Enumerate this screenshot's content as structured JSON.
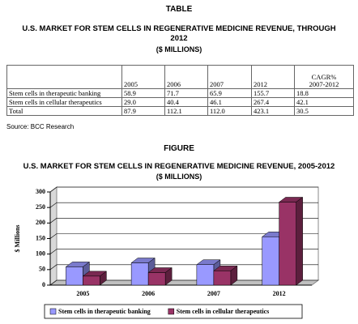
{
  "table_label": "TABLE",
  "table_title": "U.S. MARKET FOR STEM CELLS IN REGENERATIVE MEDICINE REVENUE, THROUGH 2012",
  "table_subtitle": "($ MILLIONS)",
  "table": {
    "header": [
      "2005",
      "2006",
      "2007",
      "2012",
      "CAGR%\n2007-2012"
    ],
    "rows": [
      [
        "Stem cells in therapeutic banking",
        "58.9",
        "71.7",
        "65.9",
        "155.7",
        "18.8"
      ],
      [
        "Stem cells in cellular therapeutics",
        "29.0",
        "40.4",
        "46.1",
        "267.4",
        "42.1"
      ],
      [
        "Total",
        "87.9",
        "112.1",
        "112.0",
        "423.1",
        "30.5"
      ]
    ]
  },
  "source": "Source: BCC Research",
  "figure_label": "FIGURE",
  "chart_data": {
    "type": "bar",
    "title": "U.S. MARKET FOR STEM CELLS IN REGENERATIVE MEDICINE REVENUE, 2005-2012",
    "subtitle": "($ MILLIONS)",
    "y_label": "$ Millions",
    "categories": [
      "2005",
      "2006",
      "2007",
      "2012"
    ],
    "series": [
      {
        "name": "Stem cells in therapeutic banking",
        "color": "#9999ff",
        "values": [
          58.9,
          71.7,
          65.9,
          155.7
        ]
      },
      {
        "name": "Stem cells in cellular therapeutics",
        "color": "#993366",
        "values": [
          29.0,
          40.4,
          46.1,
          267.4
        ]
      }
    ],
    "ylim": [
      0,
      300
    ],
    "yticks": [
      0,
      50,
      100,
      150,
      200,
      250,
      300
    ],
    "grid": true,
    "legend": "bottom"
  }
}
